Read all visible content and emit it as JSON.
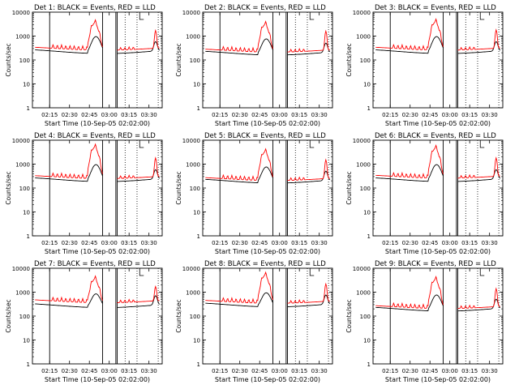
{
  "figure": {
    "colors": {
      "events": "#000000",
      "lld": "#ff0000",
      "axis": "#000000",
      "background": "#ffffff"
    }
  },
  "chart_data": [
    {
      "type": "line",
      "title": "Det 1: BLACK = Events, RED = LLD",
      "ylabel": "Counts/sec",
      "xlabel": "Start Time (10-Sep-05 02:02:00)",
      "yscale": "log",
      "ylim": [
        1,
        10000
      ],
      "yticklabels": [
        "1",
        "10",
        "100",
        "1000",
        "10000"
      ],
      "xticklabels": [
        "02:15",
        "02:30",
        "02:45",
        "03:00",
        "03:15",
        "03:30"
      ],
      "xlim": [
        "02:02",
        "03:40"
      ],
      "grid": false,
      "events_level": 230,
      "lld_level": 300,
      "lld_peak": 3500,
      "lld_late_peak": 1700,
      "events_peak": 1000
    },
    {
      "type": "line",
      "title": "Det 2: BLACK = Events, RED = LLD",
      "ylabel": "Counts/sec",
      "xlabel": "Start Time (10-Sep-05 02:02:00)",
      "yscale": "log",
      "ylim": [
        1,
        10000
      ],
      "yticklabels": [
        "1",
        "10",
        "100",
        "1000",
        "10000"
      ],
      "xticklabels": [
        "02:15",
        "02:30",
        "02:45",
        "03:00",
        "03:15",
        "03:30"
      ],
      "xlim": [
        "02:02",
        "03:40"
      ],
      "grid": false,
      "events_level": 200,
      "lld_level": 250,
      "lld_peak": 3000,
      "lld_late_peak": 1600,
      "events_peak": 800
    },
    {
      "type": "line",
      "title": "Det 3: BLACK = Events, RED = LLD",
      "ylabel": "Counts/sec",
      "xlabel": "Start Time (10-Sep-05 02:02:00)",
      "yscale": "log",
      "ylim": [
        1,
        10000
      ],
      "yticklabels": [
        "1",
        "10",
        "100",
        "1000",
        "10000"
      ],
      "xticklabels": [
        "02:15",
        "02:30",
        "02:45",
        "03:00",
        "03:15",
        "03:30"
      ],
      "xlim": [
        "02:02",
        "03:40"
      ],
      "grid": false,
      "events_level": 230,
      "lld_level": 300,
      "lld_peak": 3800,
      "lld_late_peak": 1800,
      "events_peak": 1000
    },
    {
      "type": "line",
      "title": "Det 4: BLACK = Events, RED = LLD",
      "ylabel": "Counts/sec",
      "xlabel": "Start Time (10-Sep-05 02:02:00)",
      "yscale": "log",
      "ylim": [
        1,
        10000
      ],
      "yticklabels": [
        "1",
        "10",
        "100",
        "1000",
        "10000"
      ],
      "xticklabels": [
        "02:15",
        "02:30",
        "02:45",
        "03:00",
        "03:15",
        "03:30"
      ],
      "xlim": [
        "02:02",
        "03:40"
      ],
      "grid": false,
      "events_level": 230,
      "lld_level": 290,
      "lld_peak": 5000,
      "lld_late_peak": 1800,
      "events_peak": 1000
    },
    {
      "type": "line",
      "title": "Det 5: BLACK = Events, RED = LLD",
      "ylabel": "Counts/sec",
      "xlabel": "Start Time (10-Sep-05 02:02:00)",
      "yscale": "log",
      "ylim": [
        1,
        10000
      ],
      "yticklabels": [
        "1",
        "10",
        "100",
        "1000",
        "10000"
      ],
      "xticklabels": [
        "02:15",
        "02:30",
        "02:45",
        "03:00",
        "03:15",
        "03:30"
      ],
      "xlim": [
        "02:02",
        "03:40"
      ],
      "grid": false,
      "events_level": 200,
      "lld_level": 240,
      "lld_peak": 3200,
      "lld_late_peak": 1500,
      "events_peak": 800
    },
    {
      "type": "line",
      "title": "Det 6: BLACK = Events, RED = LLD",
      "ylabel": "Counts/sec",
      "xlabel": "Start Time (10-Sep-05 02:02:00)",
      "yscale": "log",
      "ylim": [
        1,
        10000
      ],
      "yticklabels": [
        "1",
        "10",
        "100",
        "1000",
        "10000"
      ],
      "xticklabels": [
        "02:15",
        "02:30",
        "02:45",
        "03:00",
        "03:15",
        "03:30"
      ],
      "xlim": [
        "02:02",
        "03:40"
      ],
      "grid": false,
      "events_level": 230,
      "lld_level": 300,
      "lld_peak": 4500,
      "lld_late_peak": 1800,
      "events_peak": 1000
    },
    {
      "type": "line",
      "title": "Det 7: BLACK = Events, RED = LLD",
      "ylabel": "Counts/sec",
      "xlabel": "Start Time (10-Sep-05 02:02:00)",
      "yscale": "log",
      "ylim": [
        1,
        10000
      ],
      "yticklabels": [
        "1",
        "10",
        "100",
        "1000",
        "10000"
      ],
      "xticklabels": [
        "02:15",
        "02:30",
        "02:45",
        "03:00",
        "03:15",
        "03:30"
      ],
      "xlim": [
        "02:02",
        "03:40"
      ],
      "grid": false,
      "events_level": 280,
      "lld_level": 420,
      "lld_peak": 3500,
      "lld_late_peak": 1700,
      "events_peak": 900
    },
    {
      "type": "line",
      "title": "Det 8: BLACK = Events, RED = LLD",
      "ylabel": "Counts/sec",
      "xlabel": "Start Time (10-Sep-05 02:02:00)",
      "yscale": "log",
      "ylim": [
        1,
        10000
      ],
      "yticklabels": [
        "1",
        "10",
        "100",
        "1000",
        "10000"
      ],
      "xticklabels": [
        "02:15",
        "02:30",
        "02:45",
        "03:00",
        "03:15",
        "03:30"
      ],
      "xlim": [
        "02:02",
        "03:40"
      ],
      "grid": false,
      "events_level": 300,
      "lld_level": 400,
      "lld_peak": 5000,
      "lld_late_peak": 2200,
      "events_peak": 1000
    },
    {
      "type": "line",
      "title": "Det 9: BLACK = Events, RED = LLD",
      "ylabel": "Counts/sec",
      "xlabel": "Start Time (10-Sep-05 02:02:00)",
      "yscale": "log",
      "ylim": [
        1,
        10000
      ],
      "yticklabels": [
        "1",
        "10",
        "100",
        "1000",
        "10000"
      ],
      "xticklabels": [
        "02:15",
        "02:30",
        "02:45",
        "03:00",
        "03:15",
        "03:30"
      ],
      "xlim": [
        "02:02",
        "03:40"
      ],
      "grid": false,
      "events_level": 200,
      "lld_level": 240,
      "lld_peak": 3300,
      "lld_late_peak": 1400,
      "events_peak": 800
    }
  ]
}
